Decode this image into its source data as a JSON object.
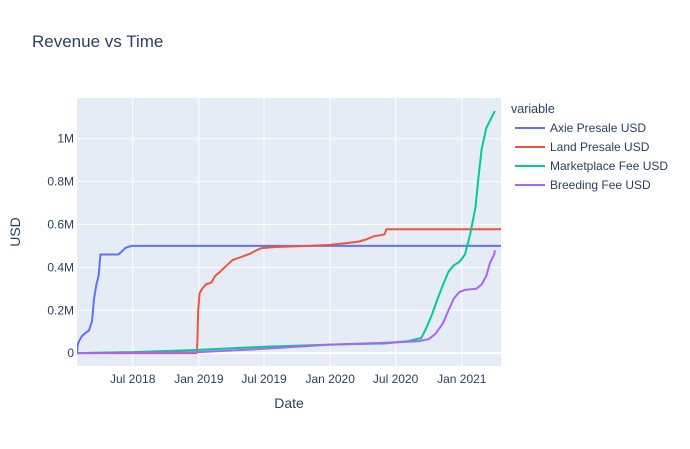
{
  "chart_data": {
    "type": "line",
    "title": "Revenue vs Time",
    "xlabel": "Date",
    "ylabel": "USD",
    "legend_title": "variable",
    "legend_position": "right",
    "grid": true,
    "xlim": [
      "2018-01-27",
      "2021-04-20"
    ],
    "ylim": [
      -60000,
      1190000
    ],
    "x_ticks": [
      {
        "date": "2018-07-01",
        "label": "Jul 2018"
      },
      {
        "date": "2019-01-01",
        "label": "Jan 2019"
      },
      {
        "date": "2019-07-01",
        "label": "Jul 2019"
      },
      {
        "date": "2020-01-01",
        "label": "Jan 2020"
      },
      {
        "date": "2020-07-01",
        "label": "Jul 2020"
      },
      {
        "date": "2021-01-01",
        "label": "Jan 2021"
      }
    ],
    "y_ticks": [
      {
        "value": 0,
        "label": "0"
      },
      {
        "value": 200000,
        "label": "0.2M"
      },
      {
        "value": 400000,
        "label": "0.4M"
      },
      {
        "value": 600000,
        "label": "0.6M"
      },
      {
        "value": 800000,
        "label": "0.8M"
      },
      {
        "value": 1000000,
        "label": "1M"
      }
    ],
    "series": [
      {
        "name": "Axie Presale USD",
        "color": "#636efa",
        "points": [
          [
            "2018-01-27",
            0
          ],
          [
            "2018-01-29",
            40000
          ],
          [
            "2018-02-03",
            60000
          ],
          [
            "2018-02-10",
            80000
          ],
          [
            "2018-02-20",
            95000
          ],
          [
            "2018-03-01",
            105000
          ],
          [
            "2018-03-10",
            150000
          ],
          [
            "2018-03-15",
            250000
          ],
          [
            "2018-03-22",
            320000
          ],
          [
            "2018-03-28",
            360000
          ],
          [
            "2018-04-02",
            460000
          ],
          [
            "2018-05-22",
            460000
          ],
          [
            "2018-06-01",
            475000
          ],
          [
            "2018-06-10",
            490000
          ],
          [
            "2018-06-20",
            497000
          ],
          [
            "2018-07-01",
            500000
          ],
          [
            "2021-04-20",
            500000
          ]
        ]
      },
      {
        "name": "Land Presale USD",
        "color": "#ef553b",
        "points": [
          [
            "2018-01-27",
            0
          ],
          [
            "2018-12-25",
            0
          ],
          [
            "2018-12-27",
            5000
          ],
          [
            "2018-12-30",
            200000
          ],
          [
            "2019-01-03",
            280000
          ],
          [
            "2019-01-10",
            300000
          ],
          [
            "2019-01-20",
            320000
          ],
          [
            "2019-02-05",
            330000
          ],
          [
            "2019-02-15",
            360000
          ],
          [
            "2019-03-01",
            380000
          ],
          [
            "2019-03-20",
            410000
          ],
          [
            "2019-04-05",
            435000
          ],
          [
            "2019-05-01",
            450000
          ],
          [
            "2019-05-25",
            465000
          ],
          [
            "2019-06-10",
            480000
          ],
          [
            "2019-06-25",
            490000
          ],
          [
            "2019-08-01",
            495000
          ],
          [
            "2019-11-01",
            500000
          ],
          [
            "2020-01-01",
            505000
          ],
          [
            "2020-02-15",
            513000
          ],
          [
            "2020-03-20",
            520000
          ],
          [
            "2020-04-10",
            530000
          ],
          [
            "2020-05-01",
            545000
          ],
          [
            "2020-05-20",
            550000
          ],
          [
            "2020-06-01",
            555000
          ],
          [
            "2020-06-05",
            578000
          ],
          [
            "2021-04-20",
            578000
          ]
        ]
      },
      {
        "name": "Marketplace Fee USD",
        "color": "#00cc96",
        "points": [
          [
            "2018-01-27",
            0
          ],
          [
            "2018-07-01",
            5000
          ],
          [
            "2019-01-01",
            15000
          ],
          [
            "2019-07-01",
            30000
          ],
          [
            "2020-01-01",
            40000
          ],
          [
            "2020-06-01",
            45000
          ],
          [
            "2020-08-01",
            55000
          ],
          [
            "2020-09-10",
            70000
          ],
          [
            "2020-09-25",
            120000
          ],
          [
            "2020-10-10",
            180000
          ],
          [
            "2020-10-25",
            250000
          ],
          [
            "2020-11-10",
            320000
          ],
          [
            "2020-11-25",
            380000
          ],
          [
            "2020-12-10",
            410000
          ],
          [
            "2020-12-25",
            425000
          ],
          [
            "2021-01-10",
            460000
          ],
          [
            "2021-01-25",
            560000
          ],
          [
            "2021-02-01",
            620000
          ],
          [
            "2021-02-08",
            680000
          ],
          [
            "2021-02-15",
            800000
          ],
          [
            "2021-02-25",
            950000
          ],
          [
            "2021-03-10",
            1050000
          ],
          [
            "2021-03-25",
            1100000
          ],
          [
            "2021-04-03",
            1130000
          ]
        ]
      },
      {
        "name": "Breeding Fee USD",
        "color": "#ab63fa",
        "points": [
          [
            "2018-01-27",
            0
          ],
          [
            "2019-01-01",
            5000
          ],
          [
            "2019-07-01",
            20000
          ],
          [
            "2020-01-01",
            40000
          ],
          [
            "2020-06-01",
            48000
          ],
          [
            "2020-09-01",
            55000
          ],
          [
            "2020-10-01",
            65000
          ],
          [
            "2020-10-20",
            90000
          ],
          [
            "2020-11-10",
            140000
          ],
          [
            "2020-11-25",
            200000
          ],
          [
            "2020-12-10",
            255000
          ],
          [
            "2020-12-25",
            285000
          ],
          [
            "2021-01-10",
            295000
          ],
          [
            "2021-02-10",
            300000
          ],
          [
            "2021-02-25",
            320000
          ],
          [
            "2021-03-10",
            360000
          ],
          [
            "2021-03-20",
            420000
          ],
          [
            "2021-04-01",
            460000
          ],
          [
            "2021-04-03",
            480000
          ]
        ]
      }
    ]
  }
}
